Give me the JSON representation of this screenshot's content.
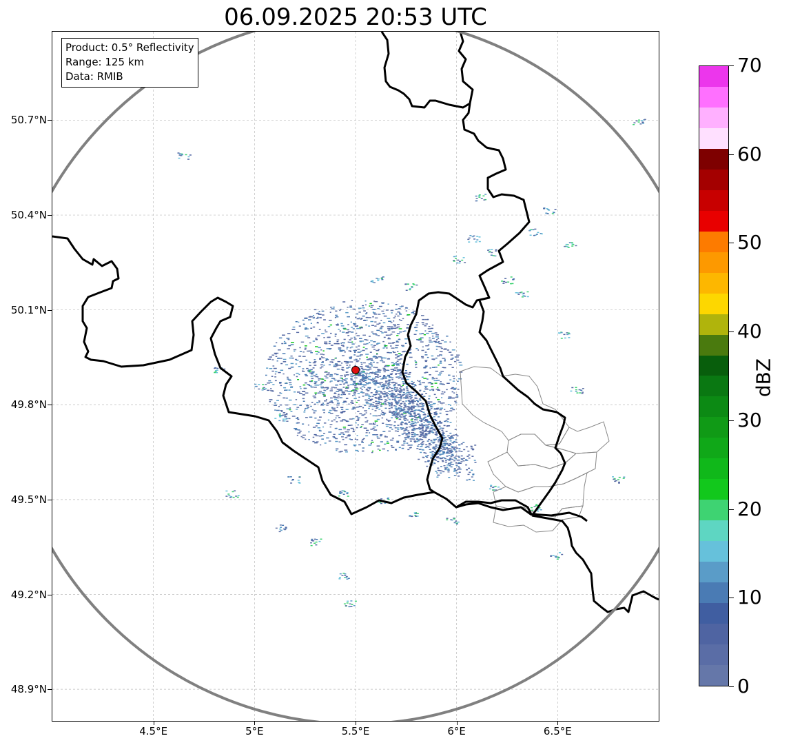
{
  "title": "06.09.2025 20:53 UTC",
  "info": {
    "product": "Product: 0.5° Reflectivity",
    "range": "Range: 125 km",
    "data": "Data: RMIB"
  },
  "map": {
    "lon_range": [
      4.0,
      7.0
    ],
    "lat_range": [
      48.8,
      50.98
    ],
    "radar_site": {
      "lon": 5.5,
      "lat": 49.91,
      "color": "#e01010"
    },
    "range_ring_color": "#808080",
    "border_color": "#000000",
    "province_border_color": "#888888",
    "grid": true
  },
  "axes": {
    "x_ticks": [
      {
        "value": 4.5,
        "label": "4.5°E"
      },
      {
        "value": 5.0,
        "label": "5°E"
      },
      {
        "value": 5.5,
        "label": "5.5°E"
      },
      {
        "value": 6.0,
        "label": "6°E"
      },
      {
        "value": 6.5,
        "label": "6.5°E"
      }
    ],
    "y_ticks": [
      {
        "value": 50.7,
        "label": "50.7°N"
      },
      {
        "value": 50.4,
        "label": "50.4°N"
      },
      {
        "value": 50.1,
        "label": "50.1°N"
      },
      {
        "value": 49.8,
        "label": "49.8°N"
      },
      {
        "value": 49.5,
        "label": "49.5°N"
      },
      {
        "value": 49.2,
        "label": "49.2°N"
      },
      {
        "value": 48.9,
        "label": "48.9°N"
      }
    ]
  },
  "colorbar": {
    "label": "dBZ",
    "ticks": [
      {
        "value": 0,
        "label": "0"
      },
      {
        "value": 10,
        "label": "10"
      },
      {
        "value": 20,
        "label": "20"
      },
      {
        "value": 30,
        "label": "30"
      },
      {
        "value": 40,
        "label": "40"
      },
      {
        "value": 50,
        "label": "50"
      },
      {
        "value": 60,
        "label": "60"
      },
      {
        "value": 70,
        "label": "70"
      }
    ],
    "min": 0,
    "max": 70,
    "colors": [
      "#6577a9",
      "#5a6da6",
      "#4f64a2",
      "#405ea1",
      "#4a7bb4",
      "#5a9cc8",
      "#66c1db",
      "#5ed6c2",
      "#3ed372",
      "#12c81c",
      "#10b81a",
      "#10a818",
      "#109a16",
      "#0c8a14",
      "#0a7812",
      "#085e0c",
      "#4a7a0e",
      "#b0b40c",
      "#fdd700",
      "#fdb700",
      "#fd9900",
      "#fd7b00",
      "#e80000",
      "#c80000",
      "#a40000",
      "#7e0000",
      "#ffe0ff",
      "#ffb0ff",
      "#ff70ff",
      "#ec36ec"
    ]
  }
}
